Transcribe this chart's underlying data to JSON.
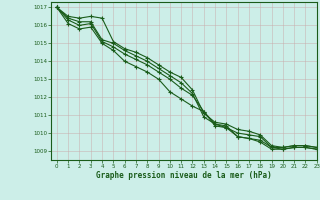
{
  "title": "Graphe pression niveau de la mer (hPa)",
  "bg_color": "#cceee8",
  "grid_color": "#b0d8d0",
  "line_color": "#1a5c1a",
  "xlim": [
    -0.5,
    23
  ],
  "ylim": [
    1008.5,
    1017.3
  ],
  "yticks": [
    1009,
    1010,
    1011,
    1012,
    1013,
    1014,
    1015,
    1016,
    1017
  ],
  "xticks": [
    0,
    1,
    2,
    3,
    4,
    5,
    6,
    7,
    8,
    9,
    10,
    11,
    12,
    13,
    14,
    15,
    16,
    17,
    18,
    19,
    20,
    21,
    22,
    23
  ],
  "series": [
    [
      1017.0,
      1016.5,
      1016.4,
      1016.5,
      1016.4,
      1015.1,
      1014.7,
      1014.5,
      1014.2,
      1013.8,
      1013.4,
      1013.1,
      1012.4,
      1011.1,
      1010.6,
      1010.5,
      1010.2,
      1010.1,
      1009.9,
      1009.3,
      1009.2,
      1009.3,
      1009.3,
      1009.2
    ],
    [
      1017.0,
      1016.4,
      1016.2,
      1016.2,
      1015.2,
      1015.0,
      1014.6,
      1014.3,
      1014.0,
      1013.6,
      1013.2,
      1012.8,
      1012.2,
      1010.9,
      1010.5,
      1010.3,
      1010.0,
      1009.9,
      1009.8,
      1009.2,
      1009.2,
      1009.3,
      1009.3,
      1009.2
    ],
    [
      1017.0,
      1016.3,
      1016.0,
      1016.1,
      1015.1,
      1014.8,
      1014.4,
      1014.1,
      1013.8,
      1013.4,
      1013.0,
      1012.5,
      1012.1,
      1011.2,
      1010.5,
      1010.4,
      1009.8,
      1009.7,
      1009.6,
      1009.2,
      1009.1,
      1009.2,
      1009.2,
      1009.1
    ],
    [
      1017.0,
      1016.1,
      1015.8,
      1015.9,
      1015.0,
      1014.6,
      1014.0,
      1013.7,
      1013.4,
      1013.0,
      1012.3,
      1011.9,
      1011.5,
      1011.2,
      1010.4,
      1010.3,
      1009.8,
      1009.7,
      1009.5,
      1009.1,
      1009.1,
      1009.2,
      1009.2,
      1009.1
    ]
  ]
}
